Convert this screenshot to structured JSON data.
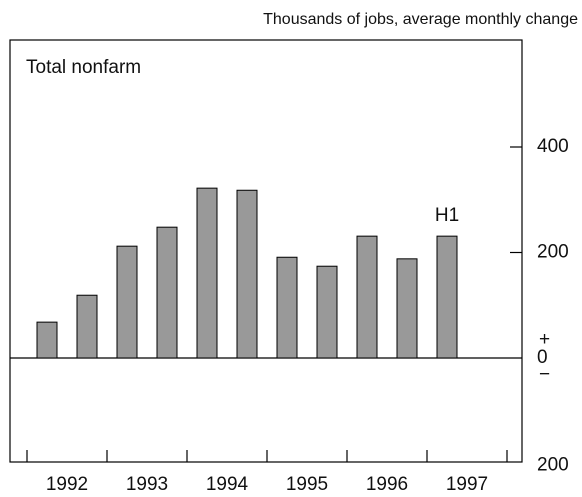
{
  "chart_data": {
    "type": "bar",
    "title": "Total nonfarm",
    "axis_label": "Thousands of jobs, average monthly change",
    "x_labels": [
      "1992",
      "1993",
      "1994",
      "1995",
      "1996",
      "1997"
    ],
    "values": [
      68,
      119,
      212,
      248,
      322,
      318,
      191,
      174,
      231,
      188,
      231
    ],
    "annotation": "H1",
    "color": "#999999",
    "ylim": [
      -200,
      600
    ],
    "yticks": [
      {
        "value": -200,
        "label": "200"
      },
      0,
      200,
      400
    ],
    "zero_signs": [
      "+",
      "−"
    ]
  }
}
